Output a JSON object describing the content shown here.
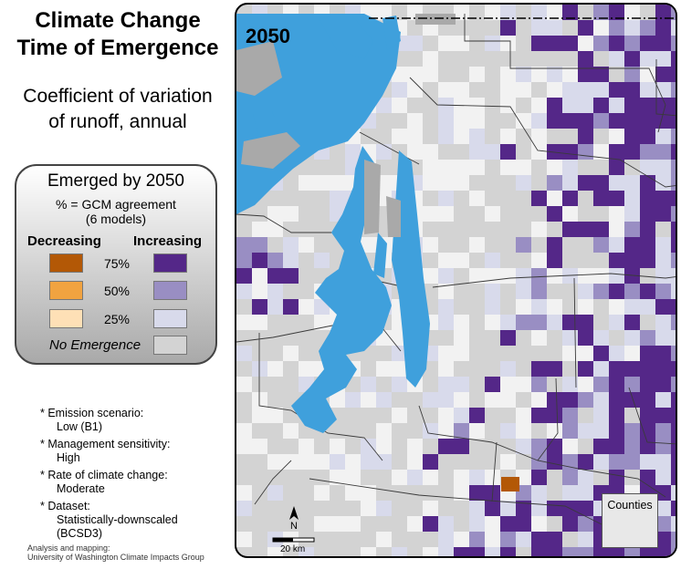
{
  "title_line1": "Climate Change",
  "title_line2": "Time of Emergence",
  "subtitle_line1": "Coefficient of variation",
  "subtitle_line2": "of runoff, annual",
  "legend": {
    "title": "Emerged by 2050",
    "sub1": "% = GCM agreement",
    "sub2": "(6 models)",
    "decreasing": "Decreasing",
    "increasing": "Increasing",
    "levels": [
      "75%",
      "50%",
      "25%"
    ],
    "no_emergence": "No Emergence",
    "colors": {
      "dec": [
        "#b35806",
        "#f1a340",
        "#fee0b6"
      ],
      "inc": [
        "#542788",
        "#998ec3",
        "#d8daeb"
      ],
      "none": "#d3d3d3",
      "water": "#3fa0dc",
      "dark": "#a9a9a9"
    }
  },
  "notes": [
    {
      "label": "* Emission scenario:",
      "value": "Low (B1)"
    },
    {
      "label": "* Management sensitivity:",
      "value": "High"
    },
    {
      "label": "* Rate of climate change:",
      "value": "Moderate"
    },
    {
      "label": "* Dataset:",
      "value": "Statistically-downscaled",
      "value2": "(BCSD3)"
    }
  ],
  "credit1": "Analysis and mapping:",
  "credit2": "University of Washington Climate Impacts Group",
  "map": {
    "year": "2050",
    "north": "N",
    "scale": "20 km",
    "counties": "Counties"
  }
}
